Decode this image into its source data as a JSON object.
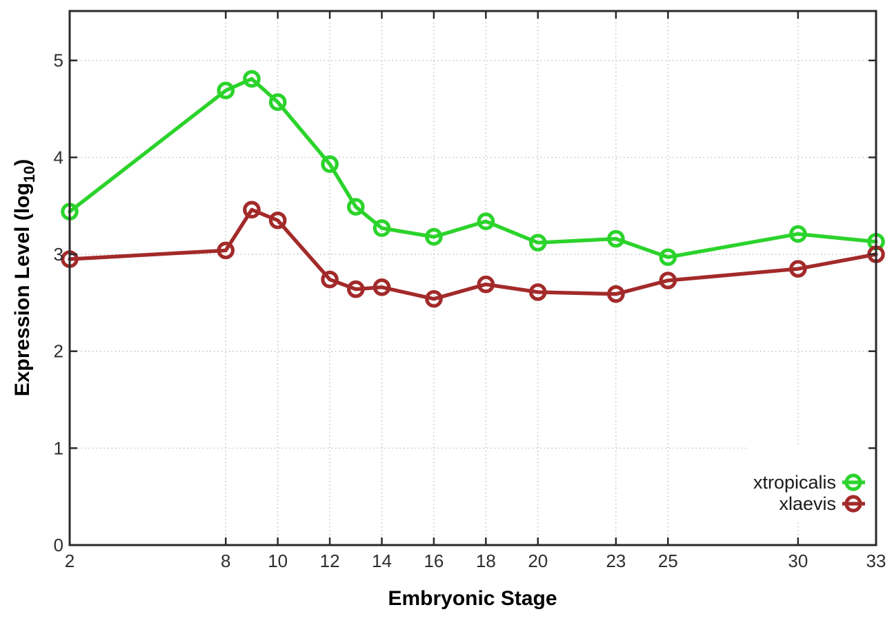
{
  "figure": {
    "background": "#ffffff",
    "border_color": "#2a2a2a",
    "grid_color": "#b8b8b8",
    "tick_label_color": "#2e2e2e",
    "axis_label_color": "#111111",
    "legend_text_color": "#1a1a1a"
  },
  "chart_data": {
    "type": "line",
    "title": "",
    "xlabel": "Embryonic Stage",
    "ylabel_parts": {
      "prefix": "Expression Level (log",
      "sub": "10",
      "suffix": ")"
    },
    "xlim": [
      2,
      33
    ],
    "ylim": [
      0,
      5.51
    ],
    "xticks": [
      2,
      8,
      10,
      12,
      14,
      16,
      18,
      20,
      23,
      25,
      30,
      33
    ],
    "yticks": [
      0,
      1,
      2,
      3,
      4,
      5
    ],
    "grid": true,
    "legend_position": "bottom-right",
    "marker": "open-circle",
    "x": [
      2,
      8,
      9,
      10,
      12,
      13,
      14,
      16,
      18,
      20,
      23,
      25,
      30,
      33
    ],
    "series": [
      {
        "name": "xtropicalis",
        "color": "#2bd32b",
        "values": [
          3.44,
          4.69,
          4.81,
          4.57,
          3.93,
          3.49,
          3.27,
          3.18,
          3.34,
          3.12,
          3.16,
          2.97,
          3.21,
          3.13
        ]
      },
      {
        "name": "xlaevis",
        "color": "#a32a2a",
        "values": [
          2.95,
          3.04,
          3.46,
          3.35,
          2.74,
          2.64,
          2.66,
          2.54,
          2.69,
          2.61,
          2.59,
          2.73,
          2.85,
          3.0
        ]
      }
    ]
  }
}
